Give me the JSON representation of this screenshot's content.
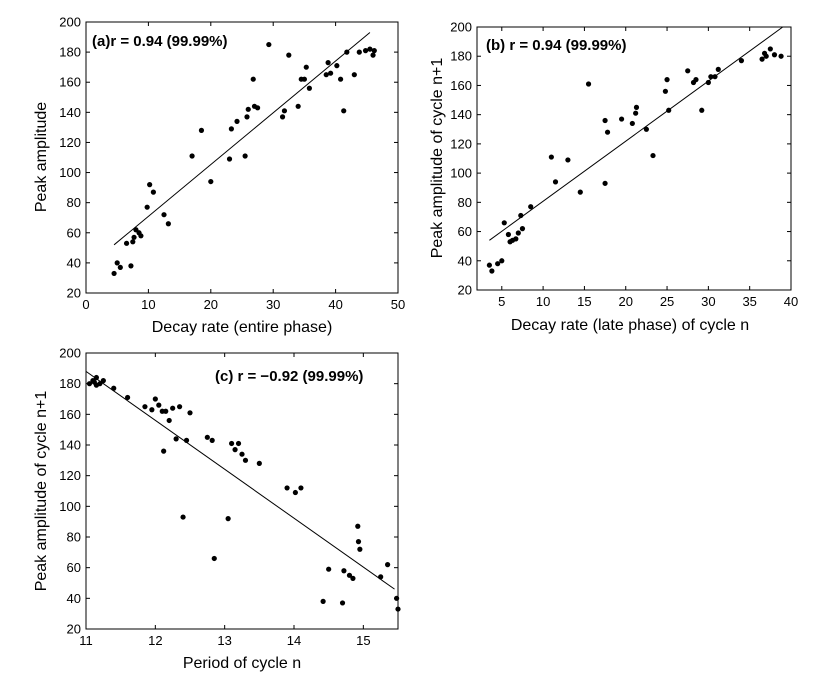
{
  "chart_data": [
    {
      "type": "scatter",
      "title": "(a)r = 0.94 (99.99%)",
      "xlabel": "Decay rate (entire phase)",
      "ylabel": "Peak amplitude",
      "xlim": [
        0,
        50
      ],
      "ylim": [
        20,
        200
      ],
      "xticks": [
        "0",
        "10",
        "20",
        "30",
        "40",
        "50"
      ],
      "yticks": [
        "20",
        "40",
        "60",
        "80",
        "100",
        "120",
        "140",
        "160",
        "180",
        "200"
      ],
      "fit_line": [
        [
          4.5,
          52
        ],
        [
          45.5,
          193
        ]
      ],
      "points": [
        [
          4.5,
          33
        ],
        [
          5,
          40
        ],
        [
          5.5,
          37
        ],
        [
          6.5,
          53
        ],
        [
          7.2,
          38
        ],
        [
          7.5,
          54
        ],
        [
          7.7,
          57
        ],
        [
          8,
          62
        ],
        [
          8.5,
          60
        ],
        [
          8.8,
          58
        ],
        [
          9.8,
          77
        ],
        [
          10.2,
          92
        ],
        [
          10.8,
          87
        ],
        [
          12.5,
          72
        ],
        [
          13.2,
          66
        ],
        [
          17,
          111
        ],
        [
          18.5,
          128
        ],
        [
          20,
          94
        ],
        [
          23,
          109
        ],
        [
          23.3,
          129
        ],
        [
          24.2,
          134
        ],
        [
          25.5,
          111
        ],
        [
          25.8,
          137
        ],
        [
          26,
          142
        ],
        [
          26.8,
          162
        ],
        [
          27,
          144
        ],
        [
          27.5,
          143
        ],
        [
          29.3,
          185
        ],
        [
          31.5,
          137
        ],
        [
          31.8,
          141
        ],
        [
          32.5,
          178
        ],
        [
          34,
          144
        ],
        [
          34.5,
          162
        ],
        [
          35,
          162
        ],
        [
          35.3,
          170
        ],
        [
          35.8,
          156
        ],
        [
          38.5,
          165
        ],
        [
          38.8,
          173
        ],
        [
          39.2,
          166
        ],
        [
          40.2,
          171
        ],
        [
          40.8,
          162
        ],
        [
          41.3,
          141
        ],
        [
          41.8,
          180
        ],
        [
          43,
          165
        ],
        [
          43.8,
          180
        ],
        [
          44.8,
          181
        ],
        [
          45.5,
          182
        ],
        [
          46,
          178
        ],
        [
          46.2,
          181
        ]
      ]
    },
    {
      "type": "scatter",
      "title": "(b)  r = 0.94 (99.99%)",
      "xlabel": "Decay rate (late phase) of cycle n",
      "ylabel": "Peak amplitude of cycle n+1",
      "xlim": [
        2,
        40
      ],
      "ylim": [
        20,
        200
      ],
      "xticks": [
        "5",
        "10",
        "15",
        "20",
        "25",
        "30",
        "35",
        "40"
      ],
      "xtick_values": [
        5,
        10,
        15,
        20,
        25,
        30,
        35,
        40
      ],
      "yticks": [
        "20",
        "40",
        "60",
        "80",
        "100",
        "120",
        "140",
        "160",
        "180",
        "200"
      ],
      "fit_line": [
        [
          3.5,
          54
        ],
        [
          39,
          200
        ]
      ],
      "points": [
        [
          3.5,
          37
        ],
        [
          3.8,
          33
        ],
        [
          4.5,
          38
        ],
        [
          5,
          40
        ],
        [
          5.3,
          66
        ],
        [
          5.8,
          58
        ],
        [
          6,
          53
        ],
        [
          6.3,
          54
        ],
        [
          6.7,
          55
        ],
        [
          7,
          59
        ],
        [
          7.3,
          71
        ],
        [
          7.5,
          62
        ],
        [
          8.5,
          77
        ],
        [
          11,
          111
        ],
        [
          11.5,
          94
        ],
        [
          13,
          109
        ],
        [
          14.5,
          87
        ],
        [
          15.5,
          161
        ],
        [
          17.5,
          93
        ],
        [
          17.5,
          136
        ],
        [
          17.8,
          128
        ],
        [
          19.5,
          137
        ],
        [
          20.8,
          134
        ],
        [
          21.2,
          141
        ],
        [
          21.3,
          145
        ],
        [
          22.5,
          130
        ],
        [
          23.3,
          112
        ],
        [
          24.8,
          156
        ],
        [
          25,
          164
        ],
        [
          25.2,
          143
        ],
        [
          27.5,
          170
        ],
        [
          28.2,
          162
        ],
        [
          28.5,
          164
        ],
        [
          29.2,
          143
        ],
        [
          30,
          162
        ],
        [
          30.3,
          166
        ],
        [
          30.8,
          166
        ],
        [
          31.2,
          171
        ],
        [
          34,
          177
        ],
        [
          36.5,
          178
        ],
        [
          36.8,
          182
        ],
        [
          37,
          180
        ],
        [
          37.5,
          185
        ],
        [
          38,
          181
        ],
        [
          38.8,
          180
        ]
      ]
    },
    {
      "type": "scatter",
      "title": "(c)  r = −0.92 (99.99%)",
      "xlabel": "Period of cycle n",
      "ylabel": "Peak amplitude of cycle n+1",
      "xlim": [
        11,
        15.5
      ],
      "ylim": [
        20,
        200
      ],
      "xticks": [
        "11",
        "12",
        "13",
        "14",
        "15"
      ],
      "xtick_values": [
        11,
        12,
        13,
        14,
        15
      ],
      "yticks": [
        "20",
        "40",
        "60",
        "80",
        "100",
        "120",
        "140",
        "160",
        "180",
        "200"
      ],
      "fit_line": [
        [
          11,
          188
        ],
        [
          15.45,
          46
        ]
      ],
      "points": [
        [
          11.05,
          180
        ],
        [
          11.1,
          182
        ],
        [
          11.12,
          181
        ],
        [
          11.15,
          179
        ],
        [
          11.15,
          184
        ],
        [
          11.2,
          180
        ],
        [
          11.25,
          182
        ],
        [
          11.4,
          177
        ],
        [
          11.6,
          171
        ],
        [
          11.85,
          165
        ],
        [
          11.95,
          163
        ],
        [
          12,
          170
        ],
        [
          12.05,
          166
        ],
        [
          12.1,
          162
        ],
        [
          12.15,
          162
        ],
        [
          12.2,
          156
        ],
        [
          12.25,
          164
        ],
        [
          12.3,
          144
        ],
        [
          12.12,
          136
        ],
        [
          12.35,
          165
        ],
        [
          12.4,
          93
        ],
        [
          12.45,
          143
        ],
        [
          12.5,
          161
        ],
        [
          12.75,
          145
        ],
        [
          12.82,
          143
        ],
        [
          12.85,
          66
        ],
        [
          13.05,
          92
        ],
        [
          13.1,
          141
        ],
        [
          13.15,
          137
        ],
        [
          13.2,
          141
        ],
        [
          13.25,
          134
        ],
        [
          13.3,
          130
        ],
        [
          13.5,
          128
        ],
        [
          13.9,
          112
        ],
        [
          14.02,
          109
        ],
        [
          14.1,
          112
        ],
        [
          14.42,
          38
        ],
        [
          14.5,
          59
        ],
        [
          14.7,
          37
        ],
        [
          14.72,
          58
        ],
        [
          14.8,
          55
        ],
        [
          14.85,
          53
        ],
        [
          14.92,
          87
        ],
        [
          14.93,
          77
        ],
        [
          14.95,
          72
        ],
        [
          15.25,
          54
        ],
        [
          15.35,
          62
        ],
        [
          15.48,
          40
        ],
        [
          15.5,
          33
        ]
      ]
    }
  ]
}
